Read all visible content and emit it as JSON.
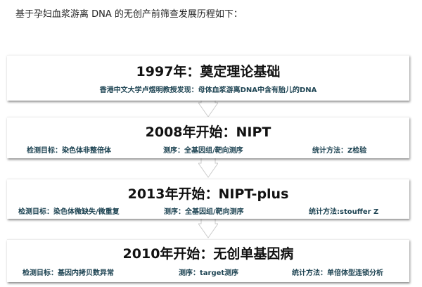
{
  "intro": "基于孕妇血浆游离 DNA 的无创产前筛查发展历程如下：",
  "stages": [
    {
      "title": "1997年：奠定理论基础",
      "desc": "香港中文大学卢煜明教授发现：母体血浆游离DNA中含有胎儿的DNA"
    },
    {
      "title": "2008年开始：NIPT",
      "target": "检测目标：染色体非整倍体",
      "sequencing": "测序：全基因组/靶向测序",
      "stats": "统计方法：Z检验"
    },
    {
      "title": "2013年开始：NIPT-plus",
      "target": "检测目标：染色体微缺失/微重复",
      "sequencing": "测序：全基因组/靶向测序",
      "stats": "统计方法:stouffer Z"
    },
    {
      "title": "2010年开始：无创单基因病",
      "target": "检测目标：基因内拷贝数异常",
      "sequencing": "测序：target测序",
      "stats": "统计方法：单倍体型连锁分析"
    }
  ]
}
